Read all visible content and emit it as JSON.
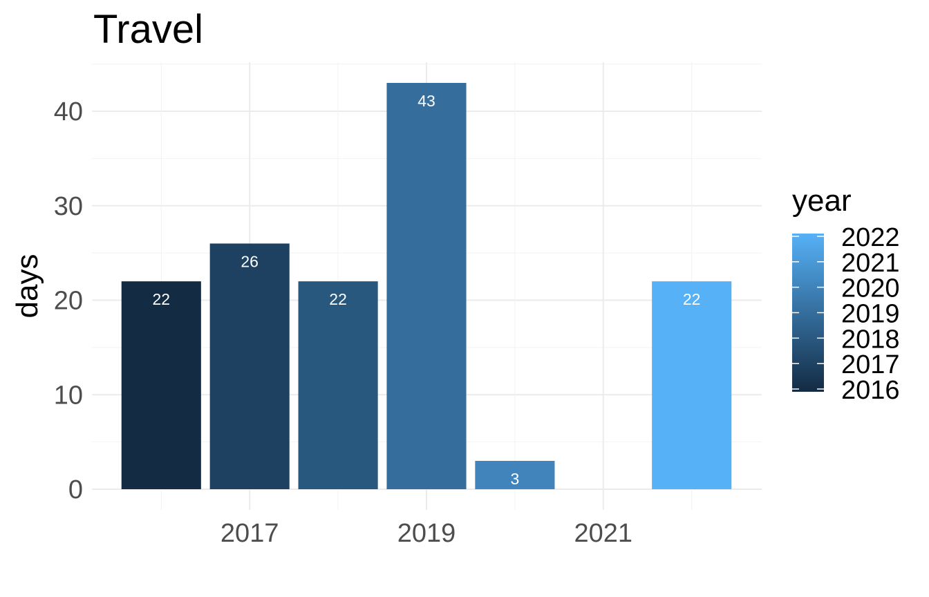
{
  "chart_data": {
    "type": "bar",
    "title": "Travel",
    "xlabel": "",
    "ylabel": "days",
    "x": [
      2016,
      2017,
      2018,
      2019,
      2020,
      2021,
      2022
    ],
    "values": [
      22,
      26,
      22,
      43,
      3,
      null,
      22
    ],
    "data_labels": [
      "22",
      "26",
      "22",
      "43",
      "3",
      "",
      "22"
    ],
    "x_ticks": [
      "2017",
      "2019",
      "2021"
    ],
    "y_ticks": [
      "0",
      "10",
      "20",
      "30",
      "40"
    ],
    "ylim": [
      0,
      45
    ],
    "xlim": [
      2015.35,
      2022.65
    ],
    "grid": true,
    "legend": {
      "title": "year",
      "placement": "right",
      "type": "colorbar",
      "labels": [
        "2022",
        "2021",
        "2020",
        "2019",
        "2018",
        "2017",
        "2016"
      ],
      "low_color": "#132b43",
      "high_color": "#56b1f7"
    }
  }
}
